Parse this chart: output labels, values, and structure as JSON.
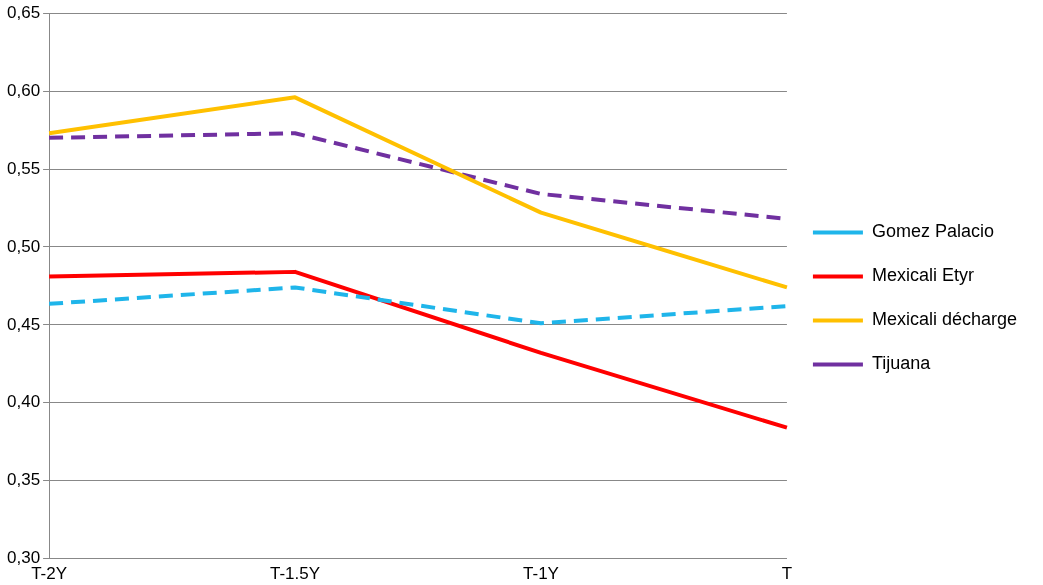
{
  "chart_data": {
    "type": "line",
    "categories": [
      "T-2Y",
      "T-1.5Y",
      "T-1Y",
      "T"
    ],
    "series": [
      {
        "name": "Gomez Palacio",
        "color": "#1fb5ea",
        "line_style": "dashed",
        "values": [
          0.4635,
          0.474,
          0.451,
          0.462
        ]
      },
      {
        "name": "Mexicali Etyr",
        "color": "#ff0000",
        "line_style": "solid",
        "values": [
          0.481,
          0.484,
          0.432,
          0.384
        ]
      },
      {
        "name": "Mexicali décharge",
        "color": "#ffc000",
        "line_style": "solid",
        "values": [
          0.573,
          0.596,
          0.522,
          0.474
        ]
      },
      {
        "name": "Tijuana",
        "color": "#7030a0",
        "line_style": "dashed",
        "values": [
          0.57,
          0.573,
          0.534,
          0.518
        ]
      }
    ],
    "ylim": [
      0.3,
      0.65
    ],
    "yticks": [
      {
        "value": 0.3,
        "label": "0,30"
      },
      {
        "value": 0.35,
        "label": "0,35"
      },
      {
        "value": 0.4,
        "label": "0,40"
      },
      {
        "value": 0.45,
        "label": "0,45"
      },
      {
        "value": 0.5,
        "label": "0,50"
      },
      {
        "value": 0.55,
        "label": "0,55"
      },
      {
        "value": 0.6,
        "label": "0,60"
      },
      {
        "value": 0.65,
        "label": "0,65"
      }
    ],
    "grid": "y",
    "legend": "right",
    "marker": "none"
  }
}
